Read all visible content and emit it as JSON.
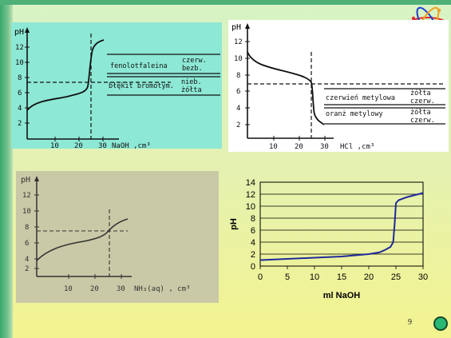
{
  "slide": {
    "page_number": "9"
  },
  "chart1": {
    "y_axis_label": "pH",
    "y_ticks": [
      "12",
      "10",
      "8",
      "6",
      "4",
      "2"
    ],
    "x_ticks": [
      "10",
      "20",
      "30"
    ],
    "x_axis_label": "NaOH ,cm³",
    "indicators": [
      {
        "name": "fenolotfaleina",
        "colors": [
          "czerw.",
          "bezb."
        ]
      },
      {
        "name": "błękit bromotym.",
        "colors": [
          "nieb.",
          "żółta"
        ]
      }
    ]
  },
  "chart2": {
    "y_axis_label": "pH",
    "y_ticks": [
      "12",
      "10",
      "8",
      "6",
      "4",
      "2"
    ],
    "x_ticks": [
      "10",
      "20",
      "30"
    ],
    "x_axis_label": "HCl ,cm³",
    "indicators": [
      {
        "name": "czerwień metylowa",
        "colors": [
          "żółta",
          "czerw."
        ]
      },
      {
        "name": "oranż metylowy",
        "colors": [
          "żółta",
          "czerw."
        ]
      }
    ]
  },
  "chart3": {
    "y_axis_label": "pH",
    "y_ticks": [
      "12",
      "10",
      "8",
      "6",
      "4",
      "2"
    ],
    "x_ticks": [
      "10",
      "20",
      "30"
    ],
    "x_axis_label": "NH₃(aq) , cm³"
  },
  "chart_data": {
    "type": "line",
    "x": [
      0,
      5,
      10,
      15,
      20,
      22,
      23,
      24,
      24.5,
      24.8,
      25,
      25.5,
      27,
      30
    ],
    "y": [
      1,
      1.2,
      1.4,
      1.6,
      2,
      2.3,
      2.7,
      3.2,
      4,
      7.5,
      10.5,
      11,
      11.5,
      12.2
    ],
    "xlabel": "ml NaOH",
    "ylabel": "pH",
    "xlim": [
      0,
      30
    ],
    "ylim": [
      0,
      14
    ],
    "x_ticks": [
      0,
      5,
      10,
      15,
      20,
      25,
      30
    ],
    "y_ticks": [
      0,
      2,
      4,
      6,
      8,
      10,
      12,
      14
    ],
    "grid": "horizontal",
    "line_color": "#1f2a99"
  }
}
